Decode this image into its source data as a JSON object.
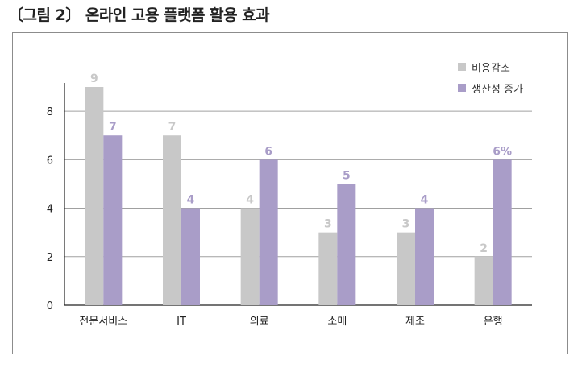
{
  "title": "〔그림 2〕 온라인 고용 플랫폼 활용 효과",
  "colors": {
    "cost": "#c8c8c8",
    "productivity": "#a99dc8",
    "axis": "#222222"
  },
  "chart_data": {
    "type": "bar",
    "title": "",
    "xlabel": "",
    "ylabel": "",
    "ylim": [
      0,
      9
    ],
    "yticks": [
      "0",
      "2",
      "4",
      "6",
      "8"
    ],
    "grid": true,
    "legend_position": "top-right",
    "categories": [
      "전문서비스",
      "IT",
      "의료",
      "소매",
      "제조",
      "은행"
    ],
    "series": [
      {
        "name": "비용감소",
        "values": [
          9,
          7,
          4,
          3,
          3,
          2
        ],
        "labels": [
          "9",
          "7",
          "4",
          "3",
          "3",
          "2"
        ]
      },
      {
        "name": "생산성 증가",
        "values": [
          7,
          4,
          6,
          5,
          4,
          6
        ],
        "labels": [
          "7",
          "4",
          "6",
          "5",
          "4",
          "6%"
        ]
      }
    ]
  }
}
